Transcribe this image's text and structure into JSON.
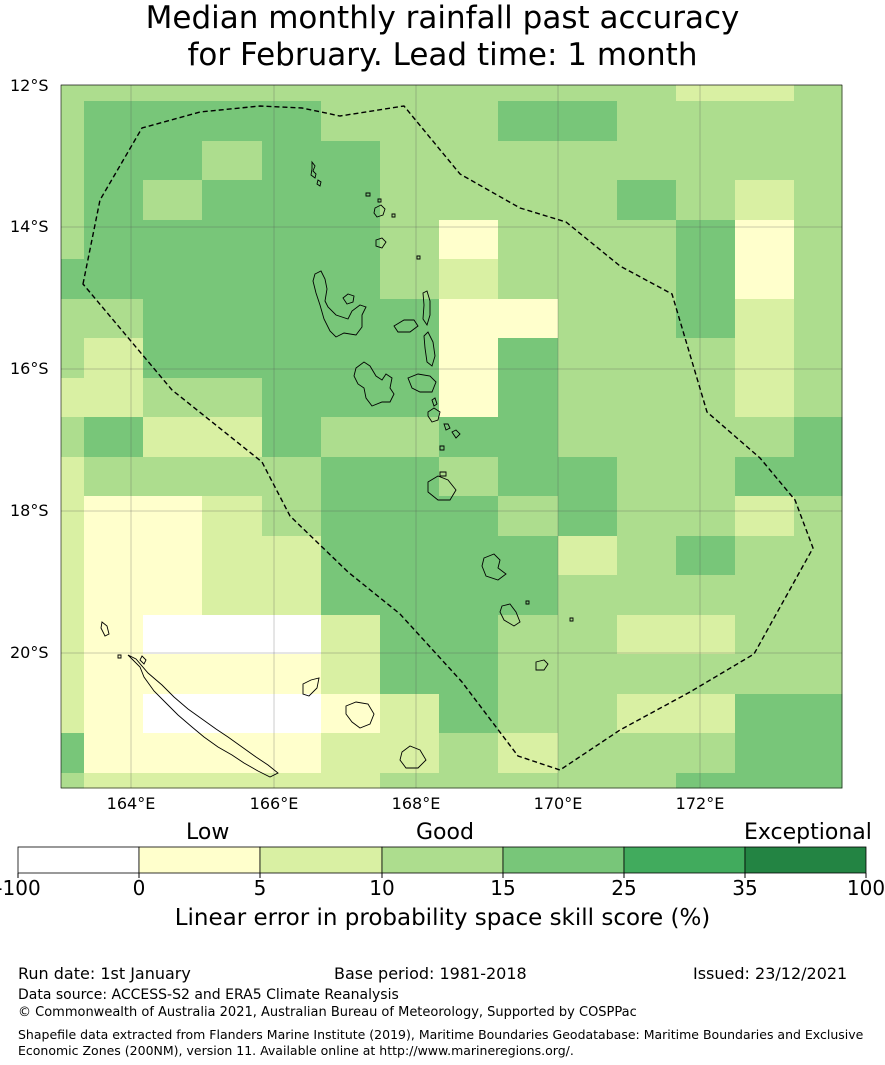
{
  "title": {
    "line1": "Median monthly rainfall past accuracy",
    "line2": "for February. Lead time: 1 month"
  },
  "map": {
    "lat_labels": [
      "12°S",
      "14°S",
      "16°S",
      "18°S",
      "20°S"
    ],
    "lon_labels": [
      "164°E",
      "166°E",
      "168°E",
      "170°E",
      "172°E"
    ],
    "boundary": "dashed-eez-outline",
    "palette": {
      "0": "#ffffff",
      "1": "#ffffcc",
      "2": "#d9f0a3",
      "3": "#addd8e",
      "4": "#78c679",
      "5": "#41ab5d",
      "6": "#238443"
    }
  },
  "colorbar": {
    "categories": [
      "Low",
      "Good",
      "Exceptional"
    ],
    "ticks": [
      "-100",
      "0",
      "5",
      "10",
      "15",
      "25",
      "35",
      "100"
    ],
    "colors": [
      "#ffffff",
      "#ffffcc",
      "#d9f0a3",
      "#addd8e",
      "#78c679",
      "#41ab5d",
      "#238443"
    ],
    "title": "Linear error in probability space skill score (%)"
  },
  "footer": {
    "run_date": "Run date: 1st January",
    "base_period": "Base period: 1981-2018",
    "issued": "Issued: 23/12/2021",
    "data_source": "Data source: ACCESS-S2 and ERA5 Climate Reanalysis",
    "copyright": "© Commonwealth of Australia 2021, Australian Bureau of Meteorology, Supported by COSPPac",
    "shapefile_line1": "Shapefile data extracted from Flanders Marine Institute (2019), Maritime Boundaries Geodatabase: Maritime Boundaries and Exclusive",
    "shapefile_line2": "Economic Zones (200NM), version 11. Available online at http://www.marineregions.org/."
  }
}
